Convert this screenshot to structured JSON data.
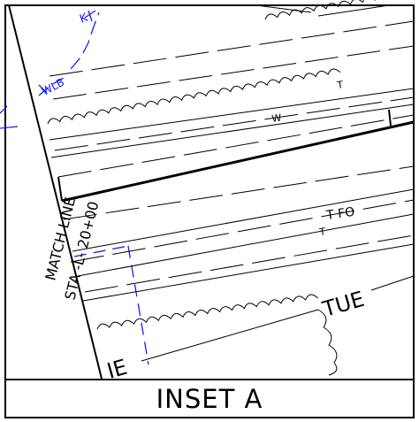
{
  "inset": {
    "title": "INSET A"
  },
  "match_line": {
    "line1": "MATCH LINE",
    "line2": "STA -L- 20+00"
  },
  "labels": {
    "road_right": "TUE",
    "road_left": "IE",
    "wlb": "WLB",
    "flag": "K",
    "water": "W",
    "telephone_upper": "T",
    "telephone_fiber": "T FO",
    "telephone_lower": "T"
  },
  "colors": {
    "linework": "#000000",
    "wetland": "#1a1aff"
  }
}
